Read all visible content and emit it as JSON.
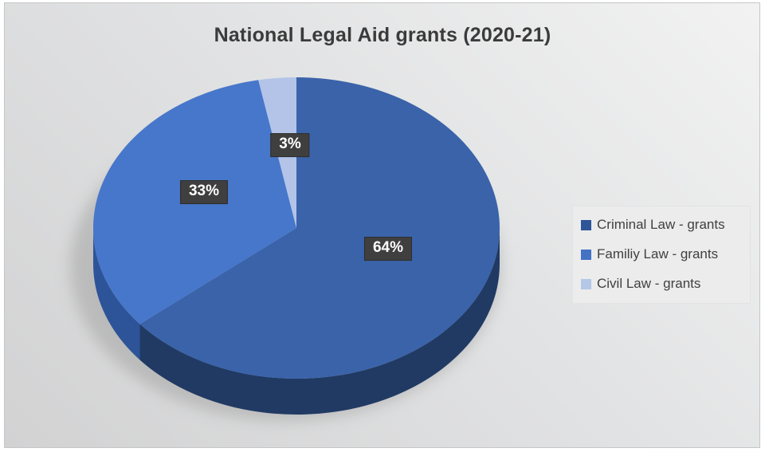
{
  "chart_data": {
    "type": "pie",
    "style": "3d-exploded-none",
    "title": "National Legal Aid grants (2020-21)",
    "start_angle": "12-oclock-clockwise",
    "legend_position": "right",
    "data_label_style": {
      "background": "#3F3F3F",
      "text_color": "#FFFFFF"
    },
    "slices": [
      {
        "name": "Criminal Law - grants",
        "value_pct": 64,
        "label": "64%",
        "color_top": "#3A63A9",
        "color_side": "#203A64",
        "color_legend": "#2E5597"
      },
      {
        "name": "Familiy Law - grants",
        "value_pct": 33,
        "label": "33%",
        "color_top": "#4777CB",
        "color_side": "#2D5498",
        "color_legend": "#4472C4"
      },
      {
        "name": "Civil Law - grants",
        "value_pct": 3,
        "label": "3%",
        "color_top": "#B3C4E8",
        "color_side": "#8FA8D6",
        "color_legend": "#B4C7E7"
      }
    ]
  }
}
